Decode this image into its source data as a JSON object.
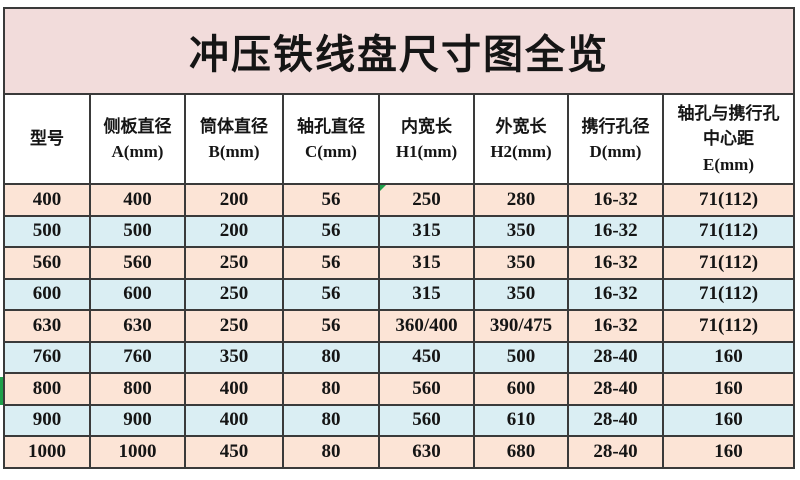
{
  "title": "冲压铁线盘尺寸图全览",
  "table": {
    "headers": [
      {
        "lines": [
          "型号"
        ]
      },
      {
        "lines": [
          "侧板直径",
          "A(mm)"
        ]
      },
      {
        "lines": [
          "筒体直径",
          "B(mm)"
        ]
      },
      {
        "lines": [
          "轴孔直径",
          "C(mm)"
        ]
      },
      {
        "lines": [
          "内宽长",
          "H1(mm)"
        ]
      },
      {
        "lines": [
          "外宽长",
          "H2(mm)"
        ]
      },
      {
        "lines": [
          "携行孔径",
          "D(mm)"
        ]
      },
      {
        "lines": [
          "轴孔与携行孔",
          "中心距",
          "E(mm)"
        ]
      }
    ],
    "rows": [
      [
        "400",
        "400",
        "200",
        "56",
        "250",
        "280",
        "16-32",
        "71(112)"
      ],
      [
        "500",
        "500",
        "200",
        "56",
        "315",
        "350",
        "16-32",
        "71(112)"
      ],
      [
        "560",
        "560",
        "250",
        "56",
        "315",
        "350",
        "16-32",
        "71(112)"
      ],
      [
        "600",
        "600",
        "250",
        "56",
        "315",
        "350",
        "16-32",
        "71(112)"
      ],
      [
        "630",
        "630",
        "250",
        "56",
        "360/400",
        "390/475",
        "16-32",
        "71(112)"
      ],
      [
        "760",
        "760",
        "350",
        "80",
        "450",
        "500",
        "28-40",
        "160"
      ],
      [
        "800",
        "800",
        "400",
        "80",
        "560",
        "600",
        "28-40",
        "160"
      ],
      [
        "900",
        "900",
        "400",
        "80",
        "560",
        "610",
        "28-40",
        "160"
      ],
      [
        "1000",
        "1000",
        "450",
        "80",
        "630",
        "680",
        "28-40",
        "160"
      ]
    ]
  },
  "colors": {
    "title_bg": "#F2DCDB",
    "header_bg": "#FFFFFF",
    "row_peach": "#FCE4D6",
    "row_blue": "#DAEEF3",
    "grid_line": "#3A3A3A",
    "text": "#151515",
    "marker_green": "#1EA04B"
  },
  "markers": {
    "error_triangle_cell": {
      "row": 0,
      "col": 4
    },
    "left_edge_strip": {
      "row": 6
    }
  }
}
